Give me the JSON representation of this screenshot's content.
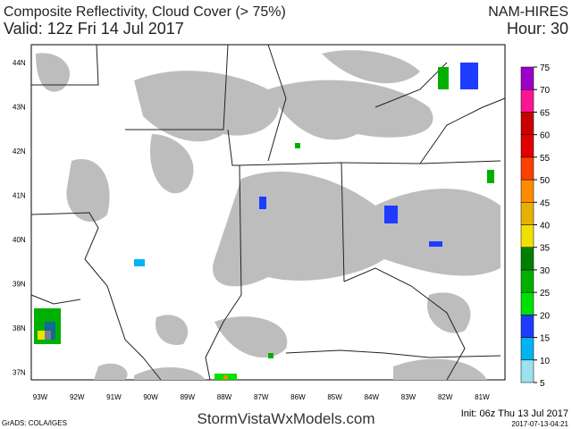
{
  "header": {
    "title": "Composite Reflectivity, Cloud Cover (> 75%)",
    "valid": "Valid: 12z Fri 14 Jul 2017",
    "model": "NAM-HIRES",
    "hour": "Hour: 30"
  },
  "lat_labels": [
    "44N",
    "43N",
    "42N",
    "41N",
    "40N",
    "39N",
    "38N",
    "37N"
  ],
  "lon_labels": [
    "93W",
    "92W",
    "91W",
    "90W",
    "89W",
    "88W",
    "87W",
    "86W",
    "85W",
    "84W",
    "83W",
    "82W",
    "81W"
  ],
  "colorbar": {
    "ticks": [
      5,
      10,
      15,
      20,
      25,
      30,
      35,
      40,
      45,
      50,
      55,
      60,
      65,
      70,
      75
    ],
    "colors": [
      "#9be1ee",
      "#00b4f0",
      "#1e3cff",
      "#00e000",
      "#00b000",
      "#008000",
      "#f0e000",
      "#e8b000",
      "#ff8c00",
      "#ff4000",
      "#e00000",
      "#c80000",
      "#ff1493",
      "#9b00c8"
    ]
  },
  "footer": {
    "grads": "GrADS: COLA/IGES",
    "site": "StormVistaWxModels.com",
    "init": "Init: 06z Thu 13 Jul 2017",
    "stamp": "2017-07-13-04:21"
  }
}
